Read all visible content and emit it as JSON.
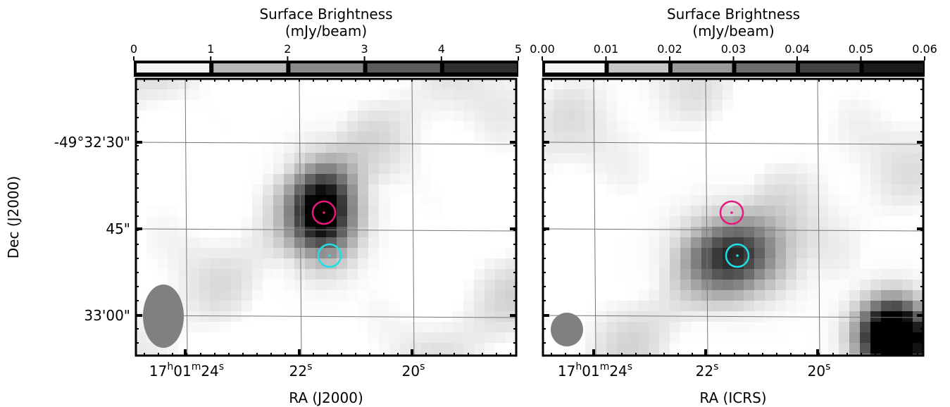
{
  "chart_data": [
    {
      "type": "image",
      "colorbar": {
        "label": [
          "Surface Brightness",
          "(mJy/beam)"
        ],
        "lim": [
          0,
          5
        ],
        "ticks": [
          0,
          1,
          2,
          3,
          4,
          5
        ],
        "colors": [
          "#f4f4f4",
          "#b8b8b8",
          "#8a8a8a",
          "#5c5c5c",
          "#2e2e2e"
        ]
      },
      "xlabel": "RA (J2000)",
      "ylabel": "Dec (J2000)",
      "xticklabels": [
        [
          "17",
          "h",
          "01",
          "m",
          "24",
          "s"
        ],
        [
          "22",
          "s"
        ],
        [
          "20",
          "s"
        ]
      ],
      "yticklabels": [
        "-49°32'30\"",
        "45\"",
        "33'00\""
      ]
    },
    {
      "type": "image",
      "colorbar": {
        "label": [
          "Surface Brightness",
          "(mJy/beam)"
        ],
        "lim": [
          0,
          0.06
        ],
        "ticks": [
          {
            "value": 0,
            "label": "0.00"
          },
          0.01,
          0.02,
          0.03,
          0.04,
          0.05,
          0.06
        ],
        "colors": [
          "#f4f4f4",
          "#c6c6c6",
          "#9a9a9a",
          "#6e6e6e",
          "#424242",
          "#1a1a1a"
        ]
      },
      "xlabel": "RA (ICRS)",
      "xticklabels": [
        [
          "17",
          "h",
          "01",
          "m",
          "24",
          "s"
        ],
        [
          "22",
          "s"
        ],
        [
          "20",
          "s"
        ]
      ]
    }
  ]
}
